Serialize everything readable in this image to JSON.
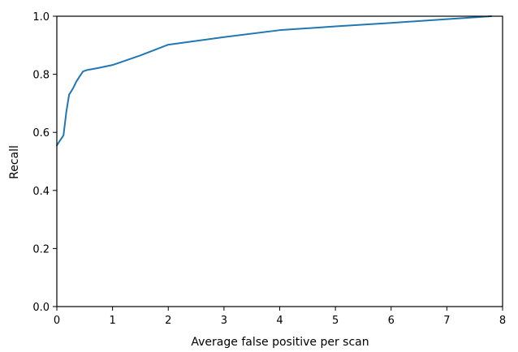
{
  "chart_data": {
    "type": "line",
    "title": "",
    "xlabel": "Average false positive per scan",
    "ylabel": "Recall",
    "xlim": [
      0,
      8
    ],
    "ylim": [
      0,
      1
    ],
    "grid": false,
    "x_ticks": [
      0,
      1,
      2,
      3,
      4,
      5,
      6,
      7,
      8
    ],
    "x_tick_labels": [
      "0",
      "1",
      "2",
      "3",
      "4",
      "5",
      "6",
      "7",
      "8"
    ],
    "y_ticks": [
      0,
      0.2,
      0.4,
      0.6,
      0.8,
      1.0
    ],
    "y_tick_labels": [
      "0.0",
      "0.2",
      "0.4",
      "0.6",
      "0.8",
      "1.0"
    ],
    "series": [
      {
        "color": "#1f77b4",
        "x": [
          0,
          0.05,
          0.12,
          0.17,
          0.22,
          0.27,
          0.3,
          0.35,
          0.4,
          0.47,
          0.55,
          0.75,
          1.0,
          1.5,
          2.0,
          3.0,
          4.0,
          5.0,
          6.0,
          7.0,
          7.8
        ],
        "y": [
          0.555,
          0.57,
          0.59,
          0.67,
          0.73,
          0.745,
          0.755,
          0.775,
          0.79,
          0.81,
          0.815,
          0.822,
          0.832,
          0.865,
          0.902,
          0.928,
          0.952,
          0.965,
          0.977,
          0.99,
          1.0
        ]
      }
    ]
  }
}
